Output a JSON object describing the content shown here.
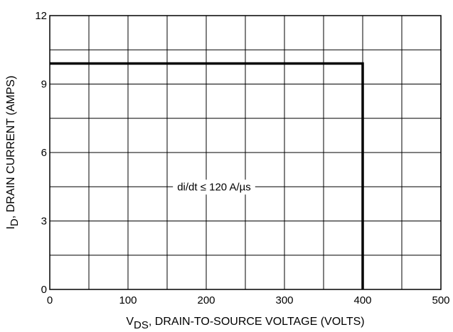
{
  "chart_data": {
    "type": "line",
    "title": "",
    "xlabel": {
      "main": "V",
      "sub": "DS",
      "rest": ", DRAIN-TO-SOURCE VOLTAGE (VOLTS)"
    },
    "ylabel": {
      "main": "I",
      "sub": "D",
      "rest": ", DRAIN CURRENT (AMPS)"
    },
    "xlim": [
      0,
      500
    ],
    "ylim": [
      0,
      12
    ],
    "x_ticks": [
      0,
      100,
      200,
      300,
      400,
      500
    ],
    "x_tick_labels": [
      "0",
      "100",
      "200",
      "300",
      "400",
      "500"
    ],
    "y_ticks": [
      0,
      3,
      6,
      9,
      12
    ],
    "y_tick_labels": [
      "0",
      "3",
      "6",
      "9",
      "12"
    ],
    "x_grid_step": 50,
    "y_grid_step": 1.5,
    "grid": true,
    "series": [
      {
        "x": [
          0,
          400,
          400
        ],
        "y": [
          9.9,
          9.9,
          0
        ]
      }
    ],
    "annotations": [
      {
        "text": "di/dt ≤ 120 A/µs",
        "x": 210,
        "y": 4.5
      }
    ]
  }
}
